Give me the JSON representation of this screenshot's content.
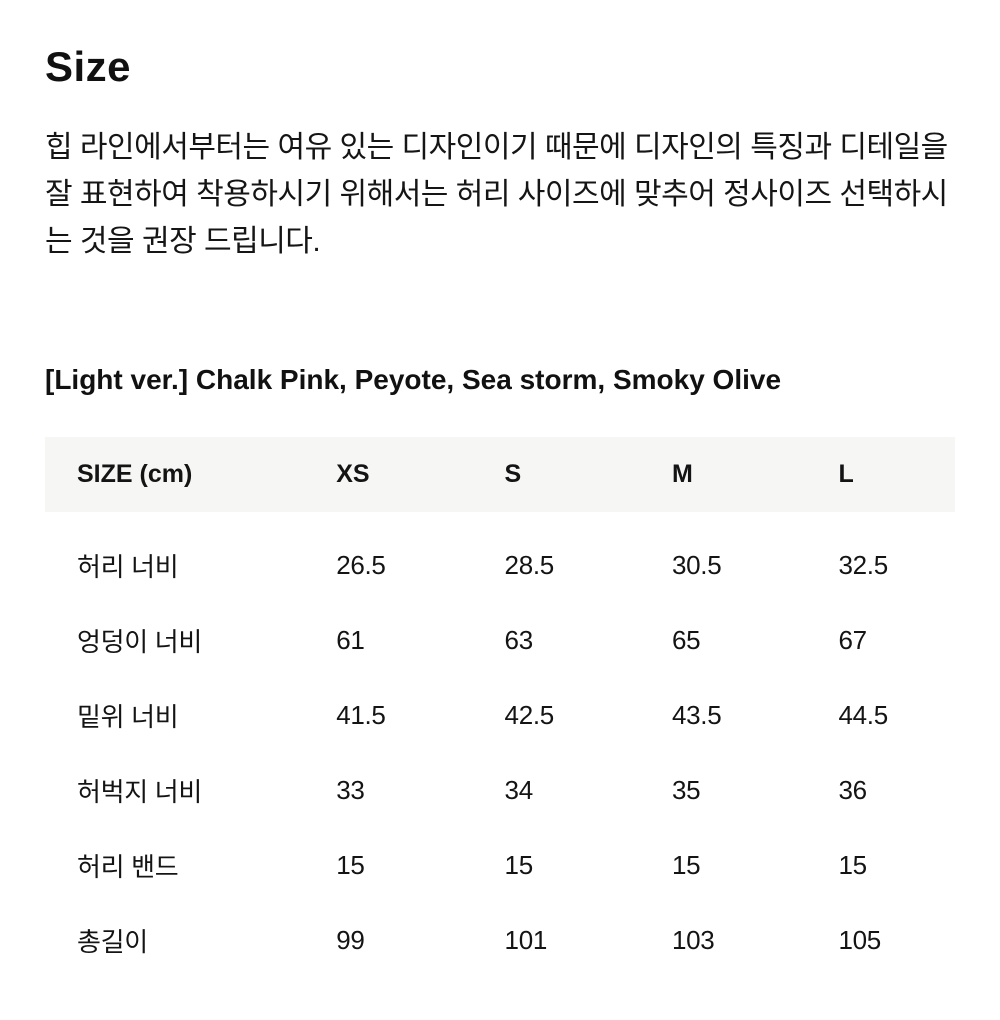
{
  "page": {
    "title": "Size",
    "description": "힙 라인에서부터는 여유 있는 디자인이기 때문에 디자인의 특징과 디테일을 잘 표현하여 착용하시기 위해서는 허리 사이즈에 맞추어 정사이즈 선택하시는 것을 권장 드립니다.",
    "variant_label": "[Light ver.] Chalk Pink, Peyote, Sea storm, Smoky Olive"
  },
  "size_table": {
    "unit_header": "SIZE (cm)",
    "columns": [
      "SIZE (cm)",
      "XS",
      "S",
      "M",
      "L"
    ],
    "rows": [
      {
        "label": "허리 너비",
        "values": [
          "26.5",
          "28.5",
          "30.5",
          "32.5"
        ]
      },
      {
        "label": "엉덩이 너비",
        "values": [
          "61",
          "63",
          "65",
          "67"
        ]
      },
      {
        "label": "밑위 너비",
        "values": [
          "41.5",
          "42.5",
          "43.5",
          "44.5"
        ]
      },
      {
        "label": "허벅지 너비",
        "values": [
          "33",
          "34",
          "35",
          "36"
        ]
      },
      {
        "label": "허리 밴드",
        "values": [
          "15",
          "15",
          "15",
          "15"
        ]
      },
      {
        "label": "총길이",
        "values": [
          "99",
          "101",
          "103",
          "105"
        ]
      }
    ]
  },
  "colors": {
    "background": "#ffffff",
    "text": "#141414",
    "table_header_bg": "#f6f6f4"
  }
}
